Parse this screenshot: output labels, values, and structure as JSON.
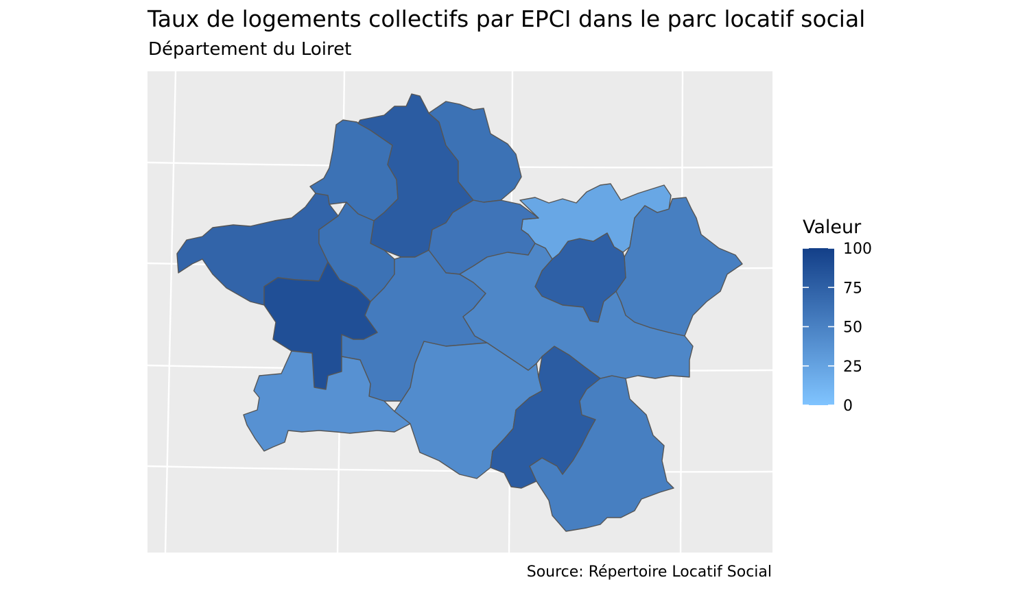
{
  "title": "Taux de logements collectifs par EPCI dans le parc locatif social",
  "subtitle": "Département du Loiret",
  "caption": "Source: Répertoire Locatif Social",
  "colors": {
    "panel_background": "#ebebeb",
    "grid_line": "#ffffff",
    "region_border": "#555555",
    "scale_low": "#80c4ff",
    "scale_high": "#133f88"
  },
  "legend": {
    "title": "Valeur",
    "ticks": [
      100,
      75,
      50,
      25,
      0
    ],
    "range": [
      0,
      100
    ]
  },
  "regions": [
    {
      "name": "north-west-a",
      "value": 62
    },
    {
      "name": "north-central",
      "value": 78
    },
    {
      "name": "north-east-a",
      "value": 62
    },
    {
      "name": "north-east-b",
      "value": 22
    },
    {
      "name": "east",
      "value": 52
    },
    {
      "name": "east-enclave",
      "value": 75
    },
    {
      "name": "west",
      "value": 72
    },
    {
      "name": "west-central",
      "value": 62
    },
    {
      "name": "orleans",
      "value": 88
    },
    {
      "name": "central-east",
      "value": 60
    },
    {
      "name": "central",
      "value": 55
    },
    {
      "name": "south-west",
      "value": 38
    },
    {
      "name": "south-central",
      "value": 42
    },
    {
      "name": "south-east-a",
      "value": 78
    },
    {
      "name": "south-east-b",
      "value": 52
    },
    {
      "name": "middle-east",
      "value": 46
    }
  ]
}
